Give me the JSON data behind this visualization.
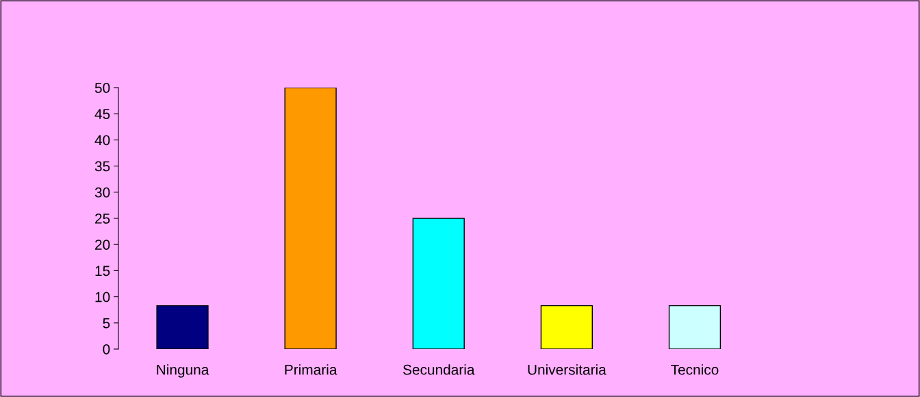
{
  "chart_data": {
    "type": "bar",
    "categories": [
      "Ninguna",
      "Primaria",
      "Secundaria",
      "Universitaria",
      "Tecnico"
    ],
    "values": [
      8.3,
      50,
      25,
      8.3,
      8.3
    ],
    "colors": [
      "#000080",
      "#ff9900",
      "#00ffff",
      "#ffff00",
      "#ccffff"
    ],
    "ylim": [
      0,
      50
    ],
    "yticks": [
      0,
      5,
      10,
      15,
      20,
      25,
      30,
      35,
      40,
      45,
      50
    ],
    "grid": false
  }
}
